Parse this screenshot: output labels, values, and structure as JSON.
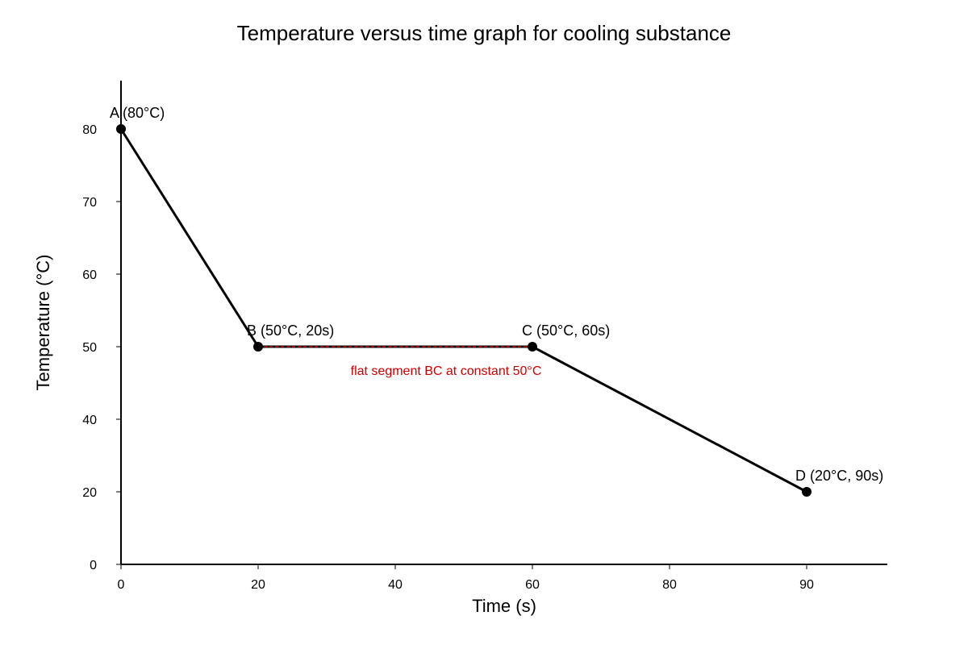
{
  "chart_data": {
    "type": "line",
    "title": "Temperature versus time graph for cooling substance",
    "xlabel": "Time (s)",
    "ylabel": "Temperature (°C)",
    "x_ticks": [
      {
        "label": "0",
        "pos": 0
      },
      {
        "label": "20",
        "pos": 1
      },
      {
        "label": "40",
        "pos": 2
      },
      {
        "label": "60",
        "pos": 3
      },
      {
        "label": "80",
        "pos": 4
      },
      {
        "label": "90",
        "pos": 5
      }
    ],
    "y_ticks": [
      {
        "label": "0",
        "pos": 0
      },
      {
        "label": "20",
        "pos": 1
      },
      {
        "label": "40",
        "pos": 2
      },
      {
        "label": "50",
        "pos": 3
      },
      {
        "label": "60",
        "pos": 4
      },
      {
        "label": "70",
        "pos": 5
      },
      {
        "label": "80",
        "pos": 6
      }
    ],
    "series": [
      {
        "points": [
          {
            "x": 0,
            "y": 80,
            "label": "A (80°C)"
          },
          {
            "x": 20,
            "y": 50,
            "label": "B (50°C, 20s)"
          },
          {
            "x": 60,
            "y": 50,
            "label": "C (50°C, 60s)"
          },
          {
            "x": 90,
            "y": 20,
            "label": "D (20°C, 90s)"
          }
        ]
      }
    ],
    "highlight_segment": {
      "from": 1,
      "to": 2,
      "color": "#cc0000"
    },
    "annotation": {
      "text": "flat segment BC at constant 50°C",
      "color": "#cc0000"
    },
    "line_color": "#000000",
    "grid": false,
    "legend": "none"
  }
}
